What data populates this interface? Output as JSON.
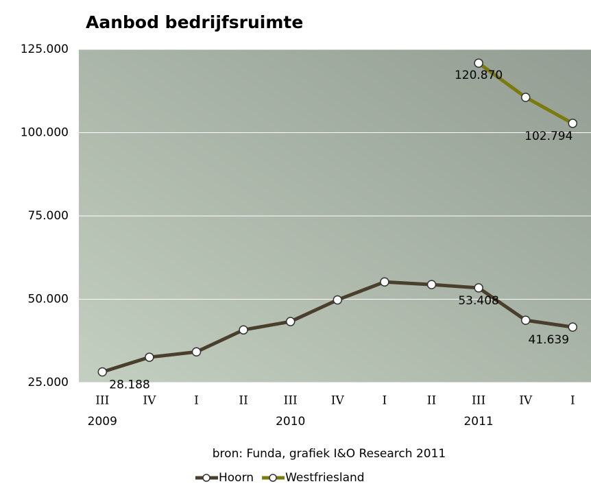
{
  "chart_data": {
    "type": "line",
    "title": "Aanbod bedrijfsruimte",
    "source": "bron: Funda, grafiek I&O Research 2011",
    "categories": [
      "III",
      "IV",
      "I",
      "II",
      "III",
      "IV",
      "I",
      "II",
      "III",
      "IV",
      "I"
    ],
    "year_labels": [
      "2009",
      null,
      null,
      null,
      "2010",
      null,
      null,
      null,
      "2011",
      null,
      null
    ],
    "series": [
      {
        "name": "Hoorn",
        "color": "#4a3f2c",
        "values": [
          28188,
          32600,
          34200,
          40800,
          43300,
          49800,
          55200,
          54400,
          53408,
          43700,
          41639
        ],
        "value_labels": [
          "28.188",
          null,
          null,
          null,
          null,
          null,
          null,
          null,
          "53.408",
          null,
          "41.639"
        ],
        "label_color": "#000000"
      },
      {
        "name": "Westfriesland",
        "color": "#7b7a0e",
        "values": [
          null,
          null,
          null,
          null,
          null,
          null,
          null,
          null,
          120870,
          110600,
          102794
        ],
        "value_labels": [
          null,
          null,
          null,
          null,
          null,
          null,
          null,
          null,
          "120.870",
          null,
          "102.794"
        ],
        "label_color": "#7b7a0e"
      }
    ],
    "ylim": [
      25000,
      125000
    ],
    "yticks": [
      {
        "value": 25000,
        "label": "25.000"
      },
      {
        "value": 50000,
        "label": "50.000"
      },
      {
        "value": 75000,
        "label": "75.000"
      },
      {
        "value": 100000,
        "label": "100.000"
      },
      {
        "value": 125000,
        "label": "125.000"
      }
    ],
    "grid": true
  }
}
